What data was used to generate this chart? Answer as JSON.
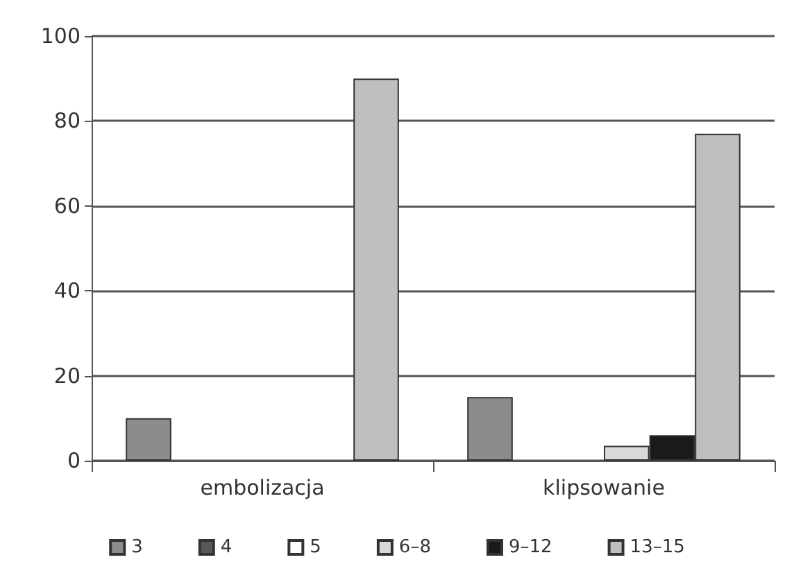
{
  "chart_data": {
    "type": "bar",
    "categories": [
      "embolizacja",
      "klipsowanie"
    ],
    "series": [
      {
        "name": "3",
        "color": "#8c8c8c",
        "values": [
          10,
          15
        ]
      },
      {
        "name": "4",
        "color": "#595959",
        "values": [
          0,
          0
        ]
      },
      {
        "name": "5",
        "color": "#ffffff",
        "values": [
          0,
          0
        ]
      },
      {
        "name": "6–8",
        "color": "#d9d9d9",
        "values": [
          0,
          3.5
        ]
      },
      {
        "name": "9–12",
        "color": "#1a1a1a",
        "values": [
          0,
          6
        ]
      },
      {
        "name": "13–15",
        "color": "#bfbfbf",
        "values": [
          90,
          77
        ]
      }
    ],
    "ylim": [
      0,
      100
    ],
    "yticks": [
      0,
      20,
      40,
      60,
      80,
      100
    ],
    "grid": "y",
    "legend": "bottom"
  }
}
